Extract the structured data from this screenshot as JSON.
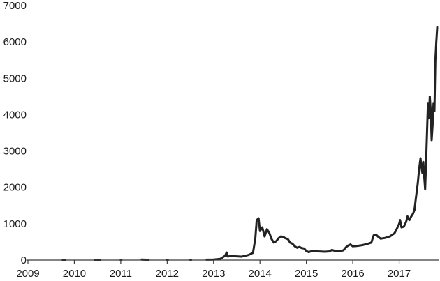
{
  "chart_data": {
    "type": "line",
    "title": "",
    "xlabel": "",
    "ylabel": "",
    "xlim": [
      2009.0,
      2017.85
    ],
    "ylim": [
      0,
      7000
    ],
    "grid": false,
    "legend": "none",
    "line_color": "#222222",
    "axis_color": "#3a3a3a",
    "x_ticks": [
      2009,
      2010,
      2011,
      2012,
      2013,
      2014,
      2015,
      2016,
      2017
    ],
    "x_tick_labels": [
      "2009",
      "2010",
      "2011",
      "2012",
      "2013",
      "2014",
      "2015",
      "2016",
      "2017"
    ],
    "y_ticks": [
      0,
      1000,
      2000,
      3000,
      4000,
      5000,
      6000,
      7000
    ],
    "y_tick_labels": [
      "0",
      "1000",
      "2000",
      "3000",
      "4000",
      "5000",
      "6000",
      "7000"
    ],
    "series": [
      {
        "values": [
          [
            2009.75,
            0
          ],
          [
            2009.8,
            0
          ],
          [
            2010.45,
            0
          ],
          [
            2010.55,
            0
          ],
          [
            2011.0,
            0
          ],
          [
            2011.45,
            15
          ],
          [
            2011.6,
            8
          ],
          [
            2012.0,
            5
          ],
          [
            2012.5,
            7
          ],
          [
            2012.85,
            12
          ],
          [
            2013.0,
            15
          ],
          [
            2013.15,
            35
          ],
          [
            2013.25,
            120
          ],
          [
            2013.28,
            210
          ],
          [
            2013.3,
            100
          ],
          [
            2013.4,
            110
          ],
          [
            2013.6,
            95
          ],
          [
            2013.75,
            140
          ],
          [
            2013.85,
            200
          ],
          [
            2013.9,
            600
          ],
          [
            2013.93,
            1100
          ],
          [
            2013.97,
            1150
          ],
          [
            2014.0,
            800
          ],
          [
            2014.05,
            900
          ],
          [
            2014.1,
            650
          ],
          [
            2014.15,
            850
          ],
          [
            2014.2,
            750
          ],
          [
            2014.25,
            580
          ],
          [
            2014.3,
            480
          ],
          [
            2014.35,
            520
          ],
          [
            2014.4,
            600
          ],
          [
            2014.45,
            650
          ],
          [
            2014.5,
            640
          ],
          [
            2014.55,
            600
          ],
          [
            2014.6,
            580
          ],
          [
            2014.65,
            480
          ],
          [
            2014.7,
            450
          ],
          [
            2014.75,
            380
          ],
          [
            2014.8,
            340
          ],
          [
            2014.85,
            360
          ],
          [
            2014.9,
            330
          ],
          [
            2014.95,
            320
          ],
          [
            2015.0,
            250
          ],
          [
            2015.05,
            220
          ],
          [
            2015.1,
            240
          ],
          [
            2015.15,
            260
          ],
          [
            2015.25,
            240
          ],
          [
            2015.4,
            230
          ],
          [
            2015.5,
            240
          ],
          [
            2015.55,
            280
          ],
          [
            2015.6,
            260
          ],
          [
            2015.7,
            240
          ],
          [
            2015.8,
            270
          ],
          [
            2015.85,
            350
          ],
          [
            2015.9,
            400
          ],
          [
            2015.95,
            430
          ],
          [
            2016.0,
            380
          ],
          [
            2016.1,
            390
          ],
          [
            2016.2,
            410
          ],
          [
            2016.3,
            440
          ],
          [
            2016.4,
            480
          ],
          [
            2016.45,
            680
          ],
          [
            2016.5,
            700
          ],
          [
            2016.55,
            640
          ],
          [
            2016.6,
            590
          ],
          [
            2016.7,
            610
          ],
          [
            2016.8,
            650
          ],
          [
            2016.9,
            740
          ],
          [
            2016.95,
            860
          ],
          [
            2017.0,
            1000
          ],
          [
            2017.02,
            1100
          ],
          [
            2017.05,
            900
          ],
          [
            2017.1,
            920
          ],
          [
            2017.15,
            1050
          ],
          [
            2017.18,
            1200
          ],
          [
            2017.22,
            1100
          ],
          [
            2017.26,
            1200
          ],
          [
            2017.3,
            1280
          ],
          [
            2017.33,
            1380
          ],
          [
            2017.36,
            1700
          ],
          [
            2017.4,
            2100
          ],
          [
            2017.43,
            2500
          ],
          [
            2017.46,
            2800
          ],
          [
            2017.48,
            2550
          ],
          [
            2017.5,
            2400
          ],
          [
            2017.52,
            2700
          ],
          [
            2017.54,
            2300
          ],
          [
            2017.56,
            1950
          ],
          [
            2017.58,
            2700
          ],
          [
            2017.6,
            3500
          ],
          [
            2017.62,
            4300
          ],
          [
            2017.64,
            3900
          ],
          [
            2017.66,
            4500
          ],
          [
            2017.68,
            4100
          ],
          [
            2017.7,
            3300
          ],
          [
            2017.72,
            3700
          ],
          [
            2017.74,
            4300
          ],
          [
            2017.76,
            4100
          ],
          [
            2017.78,
            5500
          ],
          [
            2017.8,
            6000
          ],
          [
            2017.82,
            6400
          ]
        ]
      }
    ]
  }
}
